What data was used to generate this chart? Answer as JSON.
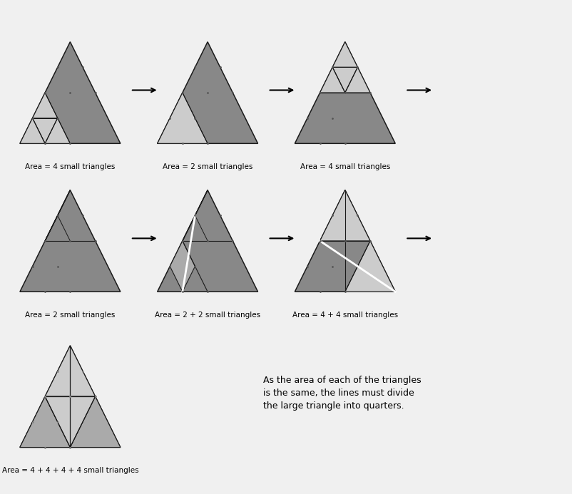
{
  "bg_color": "#f0f0f0",
  "dark_gray": "#888888",
  "light_gray": "#cccccc",
  "mid_gray": "#aaaaaa",
  "dark_line": "#1a1a1a",
  "labels": [
    "Area = 4 small triangles",
    "Area = 2 small triangles",
    "Area = 4 small triangles",
    "Area = 2 small triangles",
    "Area = 2 + 2 small triangles",
    "Area = 4 + 4 small triangles",
    "Area = 4 + 4 + 4 + 4 small triangles"
  ],
  "conclusion": "As the area of each of the triangles\nis the same, the lines must divide\nthe large triangle into quarters.",
  "label_fontsize": 7.5,
  "conclusion_fontsize": 9,
  "arrow_fontsize": 16
}
